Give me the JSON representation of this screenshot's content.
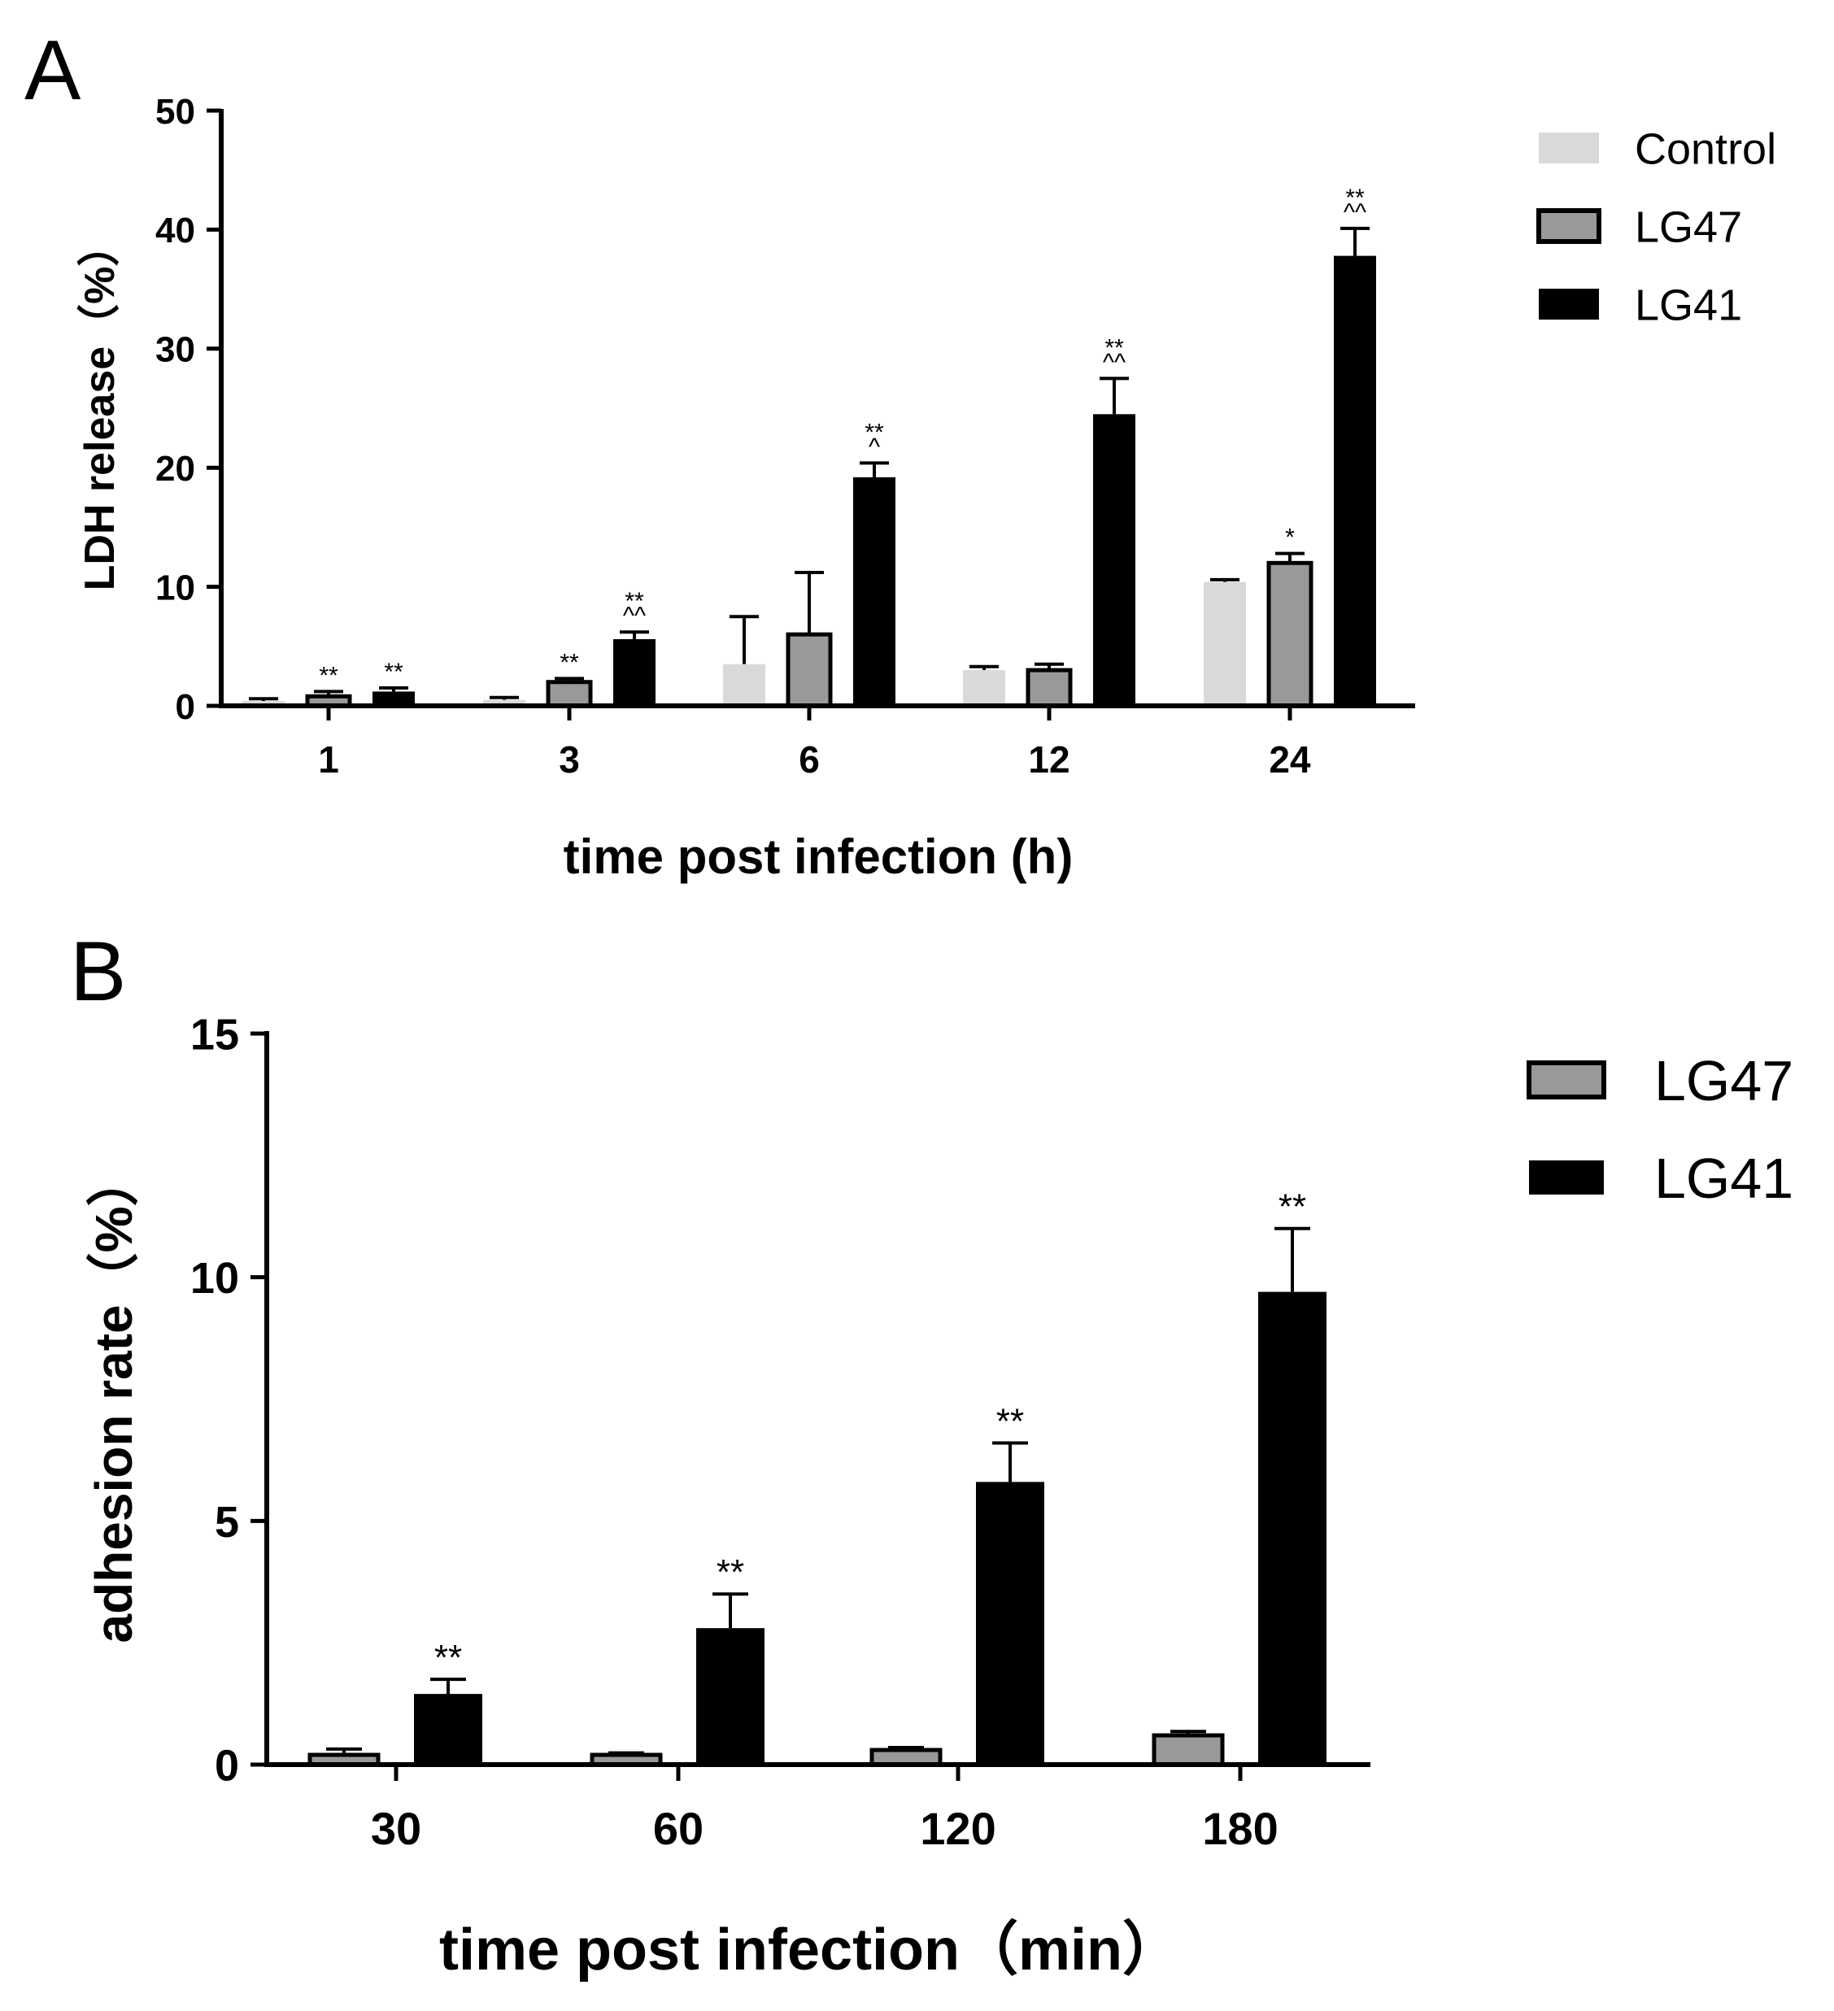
{
  "chart_data": [
    {
      "type": "bar",
      "panel": "A",
      "title": "",
      "categories": [
        "1",
        "3",
        "6",
        "12",
        "24"
      ],
      "xlabel": "time post infection (h)",
      "ylabel": "LDH release（%）",
      "ylim": [
        0,
        50
      ],
      "yticks": [
        "0",
        "10",
        "20",
        "30",
        "40",
        "50"
      ],
      "legend_position": "top-right",
      "series": [
        {
          "name": "Control",
          "color": "#d9d9d9",
          "outline": false,
          "values": [
            0.4,
            0.5,
            3.5,
            3.0,
            10.4
          ],
          "errors": [
            0.2,
            0.2,
            4.0,
            0.3,
            0.2
          ],
          "sig": [
            "",
            "",
            "",
            "",
            ""
          ]
        },
        {
          "name": "LG47",
          "color": "#999999",
          "outline": true,
          "values": [
            0.8,
            2.0,
            6.0,
            3.0,
            12.0
          ],
          "errors": [
            0.4,
            0.3,
            5.2,
            0.5,
            0.8
          ],
          "sig": [
            "**",
            "**",
            "",
            "",
            "*"
          ]
        },
        {
          "name": "LG41",
          "color": "#000000",
          "outline": false,
          "values": [
            1.2,
            5.6,
            19.2,
            24.5,
            37.8
          ],
          "errors": [
            0.3,
            0.6,
            1.2,
            3.0,
            2.3
          ],
          "sig": [
            "**",
            "**\n^^",
            "**\n^",
            "**\n^^",
            "**\n^^"
          ]
        }
      ]
    },
    {
      "type": "bar",
      "panel": "B",
      "title": "",
      "categories": [
        "30",
        "60",
        "120",
        "180"
      ],
      "xlabel": "time post infection（min）",
      "ylabel": "adhesion rate（%）",
      "ylim": [
        0,
        15
      ],
      "yticks": [
        "0",
        "5",
        "10",
        "15"
      ],
      "legend_position": "top-right",
      "series": [
        {
          "name": "LG47",
          "color": "#999999",
          "outline": true,
          "values": [
            0.2,
            0.2,
            0.3,
            0.6
          ],
          "errors": [
            0.12,
            0.04,
            0.05,
            0.08
          ],
          "sig": [
            "",
            "",
            "",
            ""
          ]
        },
        {
          "name": "LG41",
          "color": "#000000",
          "outline": false,
          "values": [
            1.45,
            2.8,
            5.8,
            9.7
          ],
          "errors": [
            0.3,
            0.7,
            0.8,
            1.3
          ],
          "sig": [
            "**",
            "**",
            "**",
            "**"
          ]
        }
      ]
    }
  ]
}
